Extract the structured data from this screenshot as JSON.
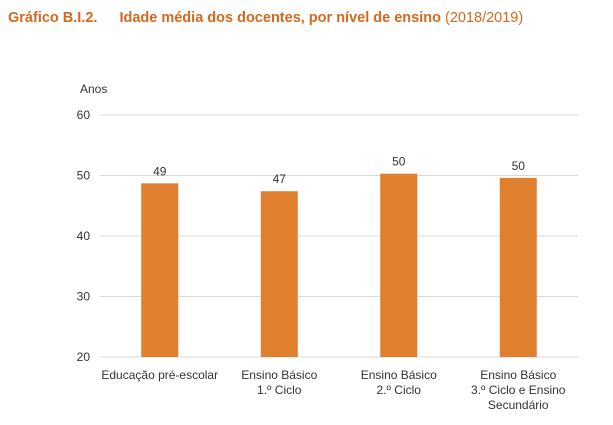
{
  "header": {
    "label": "Gráfico B.I.2.",
    "title": "Idade média dos docentes, por nível de ensino",
    "period": "(2018/2019)"
  },
  "colors": {
    "bar": "#E07F2E",
    "grid": "#D9D9D9",
    "title": "#D2691E"
  },
  "chart_data": {
    "type": "bar",
    "title": "Idade média dos docentes, por nível de ensino (2018/2019)",
    "ylabel": "Anos",
    "xlabel": "",
    "ylim": [
      20,
      60
    ],
    "yticks": [
      20,
      30,
      40,
      50,
      60
    ],
    "grid": true,
    "categories": [
      [
        "Educação pré-escolar"
      ],
      [
        "Ensino Básico",
        "1.º Ciclo"
      ],
      [
        "Ensino Básico",
        "2.º Ciclo"
      ],
      [
        "Ensino Básico",
        "3.º Ciclo e Ensino",
        "Secundário"
      ]
    ],
    "values": [
      48.7,
      47.4,
      50.3,
      49.6
    ],
    "data_labels": [
      "49",
      "47",
      "50",
      "50"
    ]
  }
}
